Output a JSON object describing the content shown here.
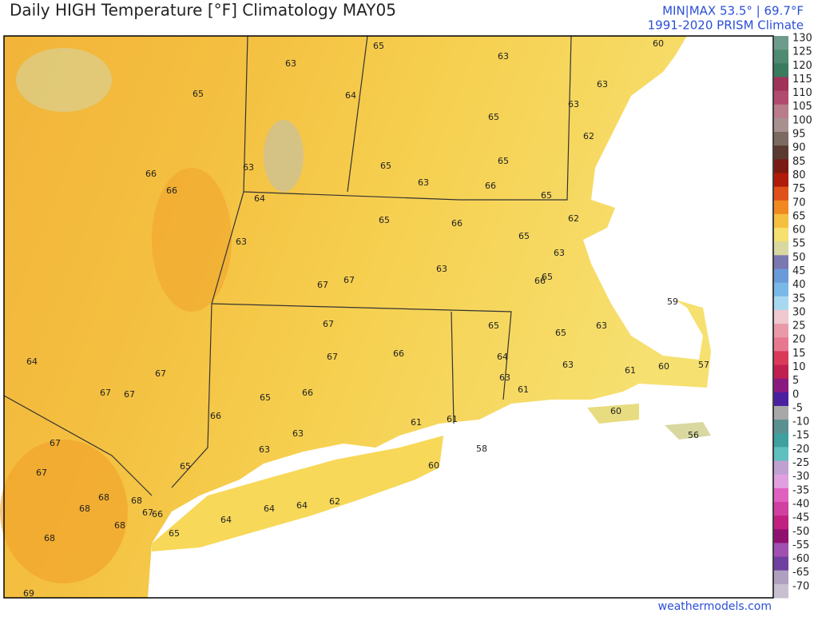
{
  "header": {
    "title": "Daily HIGH Temperature [°F]  Climatology MAY05",
    "minmax": "MIN|MAX 53.5° | 69.7°F",
    "source": "1991-2020 PRISM Climate"
  },
  "map_labels": [
    65,
    63,
    63,
    60,
    63,
    65,
    64,
    63,
    65,
    62,
    63,
    66,
    65,
    65,
    63,
    66,
    66,
    64,
    65,
    62,
    65,
    66,
    65,
    63,
    63,
    63,
    66,
    65,
    67,
    67,
    59,
    67,
    65,
    63,
    65,
    64,
    67,
    66,
    64,
    63,
    60,
    57,
    61,
    67,
    63,
    61,
    67,
    67,
    65,
    66,
    61,
    61,
    60,
    66,
    63,
    56,
    67,
    63,
    60,
    58,
    65,
    67,
    68,
    68,
    62,
    64,
    64,
    68,
    67,
    66,
    68,
    64,
    65,
    68,
    69
  ],
  "colorbar": {
    "ticks": [
      130,
      125,
      120,
      115,
      110,
      105,
      100,
      95,
      90,
      85,
      80,
      75,
      70,
      65,
      60,
      55,
      50,
      45,
      40,
      35,
      30,
      25,
      20,
      15,
      10,
      5,
      0,
      -5,
      -10,
      -15,
      -20,
      -25,
      -30,
      -35,
      -40,
      -45,
      -50,
      -55,
      -60,
      -65,
      -70
    ],
    "colors": [
      "#6e9c8c",
      "#4f8a72",
      "#3a7a5e",
      "#a0325a",
      "#b04a6e",
      "#b87c8a",
      "#a89090",
      "#7a6a60",
      "#5a3a30",
      "#7a1a12",
      "#b01a0a",
      "#e0501a",
      "#f08a20",
      "#f5c040",
      "#f5e070",
      "#d8d8a0",
      "#7a78b0",
      "#6a9ad8",
      "#7ab8e8",
      "#a8d8f0",
      "#f0c8d0",
      "#e89aa8",
      "#e87890",
      "#d83a58",
      "#c02050",
      "#8a1a80",
      "#4a20a0",
      "#a8a8a8",
      "#5a9090",
      "#40a0a0",
      "#60c0c0",
      "#c0a0d0",
      "#e0a0e0",
      "#e060c0",
      "#d040a0",
      "#c02080",
      "#901070",
      "#a050b0",
      "#7040a0",
      "#b0a0c0",
      "#c8c0d0"
    ]
  },
  "footer": "weathermodels.com"
}
